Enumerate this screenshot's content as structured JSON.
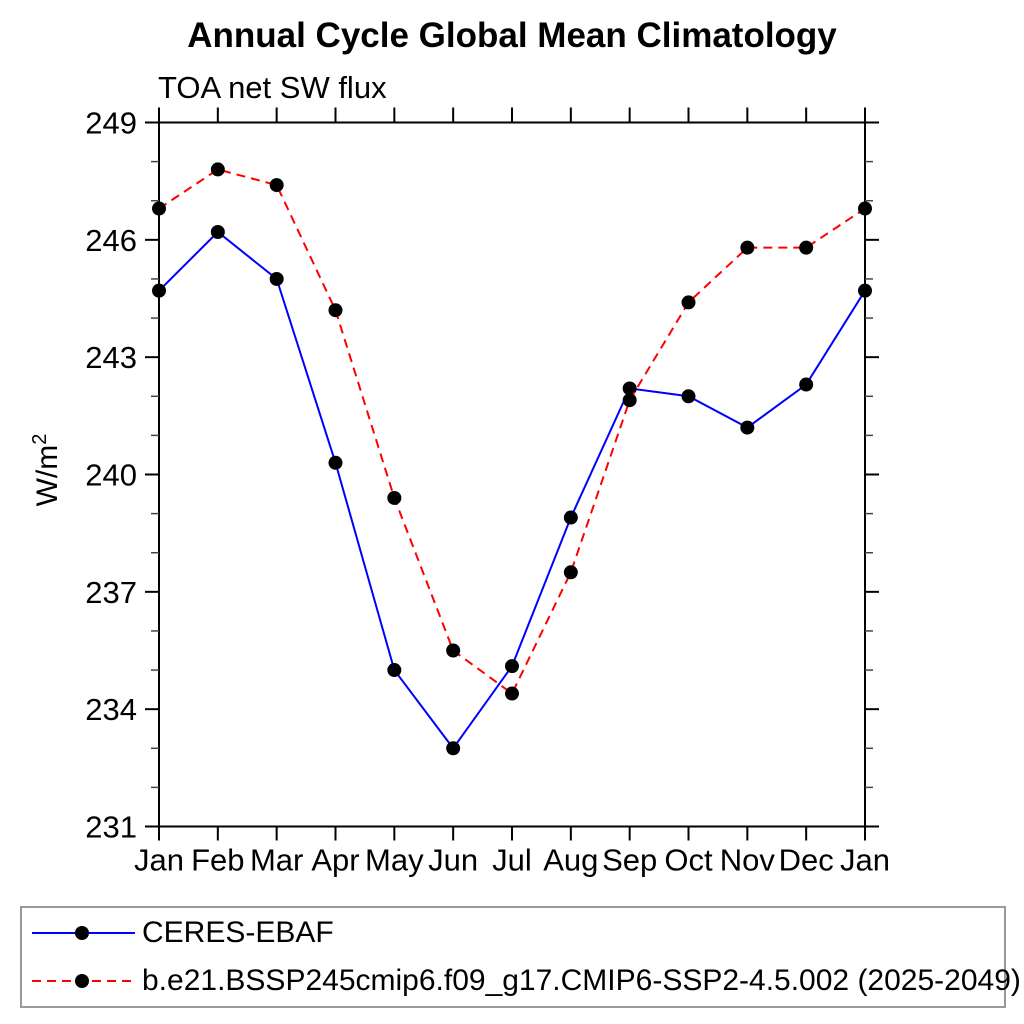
{
  "title": "Annual Cycle Global Mean Climatology",
  "subtitle": "TOA net SW flux",
  "ylabel": {
    "base": "W/m",
    "sup": "2"
  },
  "colors": {
    "background": "#ffffff",
    "axis": "#000000",
    "minor_tick": "#444444",
    "marker": "#000000",
    "text": "#000000",
    "legend_border": "#999999",
    "ceres_line": "#0000ff",
    "model_line": "#ff0000"
  },
  "chart_data": {
    "type": "line",
    "categories": [
      "Jan",
      "Feb",
      "Mar",
      "Apr",
      "May",
      "Jun",
      "Jul",
      "Aug",
      "Sep",
      "Oct",
      "Nov",
      "Dec",
      "Jan"
    ],
    "series": [
      {
        "name": "CERES-EBAF",
        "color": "#0000ff",
        "style": "solid",
        "marker": "black-dot",
        "values": [
          244.7,
          246.2,
          245.0,
          240.3,
          235.0,
          233.0,
          235.1,
          238.9,
          242.2,
          242.0,
          241.2,
          242.3,
          244.7
        ]
      },
      {
        "name": "b.e21.BSSP245cmip6.f09_g17.CMIP6-SSP2-4.5.002 (2025-2049)",
        "color": "#ff0000",
        "style": "dashed",
        "marker": "black-dot",
        "values": [
          246.8,
          247.8,
          247.4,
          244.2,
          239.4,
          235.5,
          234.4,
          237.5,
          241.9,
          244.4,
          245.8,
          245.8,
          246.8
        ]
      }
    ],
    "title": "Annual Cycle Global Mean Climatology",
    "subtitle": "TOA net SW flux",
    "xlabel": "",
    "ylabel": "W/m^2",
    "ylim": [
      231,
      249
    ],
    "ytick_major": [
      231,
      234,
      237,
      240,
      243,
      246,
      249
    ],
    "ytick_minor_step": 1,
    "grid": false,
    "legend_position": "bottom"
  }
}
